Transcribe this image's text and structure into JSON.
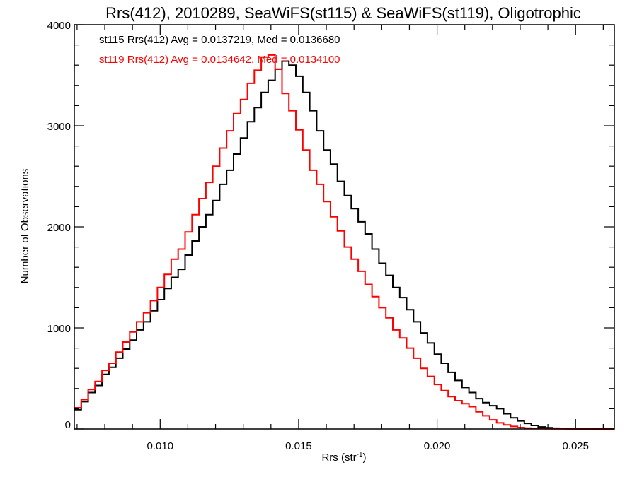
{
  "chart_data": {
    "type": "line",
    "subtype": "step-histogram",
    "title": "Rrs(412), 2010289, SeaWiFS(st115) & SeaWiFS(st119), Oligotrophic",
    "xlabel": "Rrs (str⁻¹)",
    "ylabel": "Number of Observations",
    "xlim": [
      0.0069,
      0.0264
    ],
    "ylim": [
      0,
      4000
    ],
    "xticks": [
      0.01,
      0.015,
      0.02,
      0.025
    ],
    "xtick_labels": [
      "0.010",
      "0.015",
      "0.020",
      "0.025"
    ],
    "xminor_step": 0.001,
    "yticks": [
      0,
      1000,
      2000,
      3000,
      4000
    ],
    "ytick_labels": [
      "0",
      "1000",
      "2000",
      "3000",
      "4000"
    ],
    "yminor_step": 200,
    "grid": false,
    "legend_placement": "top-left",
    "bin_start": 0.0069,
    "bin_width": 0.00025,
    "series": [
      {
        "name": "st115",
        "color": "#000000",
        "legend": "st115 Rrs(412) Avg = 0.0137219, Med = 0.0136680",
        "values": [
          190,
          270,
          360,
          430,
          540,
          610,
          700,
          790,
          880,
          980,
          1060,
          1170,
          1280,
          1390,
          1500,
          1580,
          1720,
          1860,
          2000,
          2120,
          2260,
          2420,
          2560,
          2720,
          2880,
          3040,
          3180,
          3330,
          3450,
          3560,
          3640,
          3600,
          3490,
          3330,
          3150,
          2950,
          2760,
          2620,
          2450,
          2310,
          2180,
          2050,
          1930,
          1780,
          1640,
          1520,
          1400,
          1300,
          1180,
          1060,
          950,
          850,
          740,
          650,
          560,
          480,
          410,
          360,
          300,
          260,
          230,
          200,
          150,
          110,
          80,
          55,
          35,
          20,
          12,
          8,
          5,
          3,
          2,
          1,
          1,
          0,
          0,
          0
        ]
      },
      {
        "name": "st119",
        "color": "#ff0000",
        "legend": "st119 Rrs(412) Avg = 0.0134642, Med = 0.0134100",
        "values": [
          210,
          290,
          390,
          470,
          580,
          650,
          760,
          860,
          960,
          1060,
          1150,
          1270,
          1400,
          1530,
          1680,
          1780,
          1950,
          2120,
          2280,
          2440,
          2600,
          2780,
          2950,
          3120,
          3260,
          3420,
          3550,
          3680,
          3700,
          3560,
          3320,
          3150,
          2960,
          2760,
          2560,
          2420,
          2250,
          2100,
          1960,
          1800,
          1680,
          1560,
          1430,
          1310,
          1200,
          1100,
          980,
          900,
          800,
          700,
          600,
          520,
          440,
          380,
          320,
          280,
          250,
          220,
          170,
          130,
          90,
          60,
          40,
          25,
          14,
          9,
          6,
          4,
          3,
          2,
          2,
          1,
          1,
          1,
          1,
          1,
          0,
          0
        ]
      }
    ]
  }
}
